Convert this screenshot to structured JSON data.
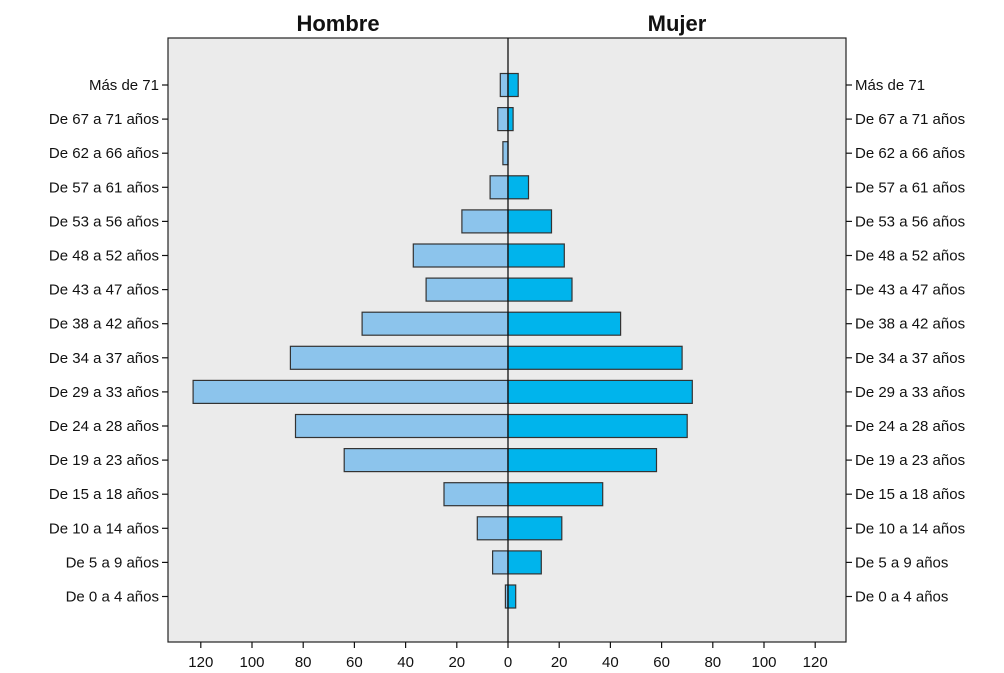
{
  "chart_data": {
    "type": "bar",
    "orientation": "horizontal",
    "layout": "population-pyramid",
    "categories": [
      "Más de 71",
      "De 67 a 71 años",
      "De 62 a 66 años",
      "De 57 a 61 años",
      "De 53 a 56 años",
      "De 48 a 52 años",
      "De 43 a 47 años",
      "De 38 a 42 años",
      "De 34 a 37 años",
      "De 29 a 33 años",
      "De 24 a 28 años",
      "De 19 a 23 años",
      "De 15 a 18 años",
      "De 10 a 14 años",
      "De 5 a 9 años",
      "De 0 a 4 años"
    ],
    "series": [
      {
        "name": "Hombre",
        "color": "#8cc4ec",
        "values": [
          3,
          4,
          2,
          7,
          18,
          37,
          32,
          57,
          85,
          123,
          83,
          64,
          25,
          12,
          6,
          1
        ]
      },
      {
        "name": "Mujer",
        "color": "#00b4ec",
        "values": [
          4,
          2,
          0,
          8,
          17,
          22,
          25,
          44,
          68,
          72,
          70,
          58,
          37,
          21,
          13,
          3
        ]
      }
    ],
    "xlim": [
      0,
      120
    ],
    "xticks": [
      120,
      100,
      80,
      60,
      40,
      20,
      0,
      20,
      40,
      60,
      80,
      100,
      120
    ],
    "grid": false,
    "plot_background": "#ebebeb",
    "axis_color": "#111111"
  }
}
